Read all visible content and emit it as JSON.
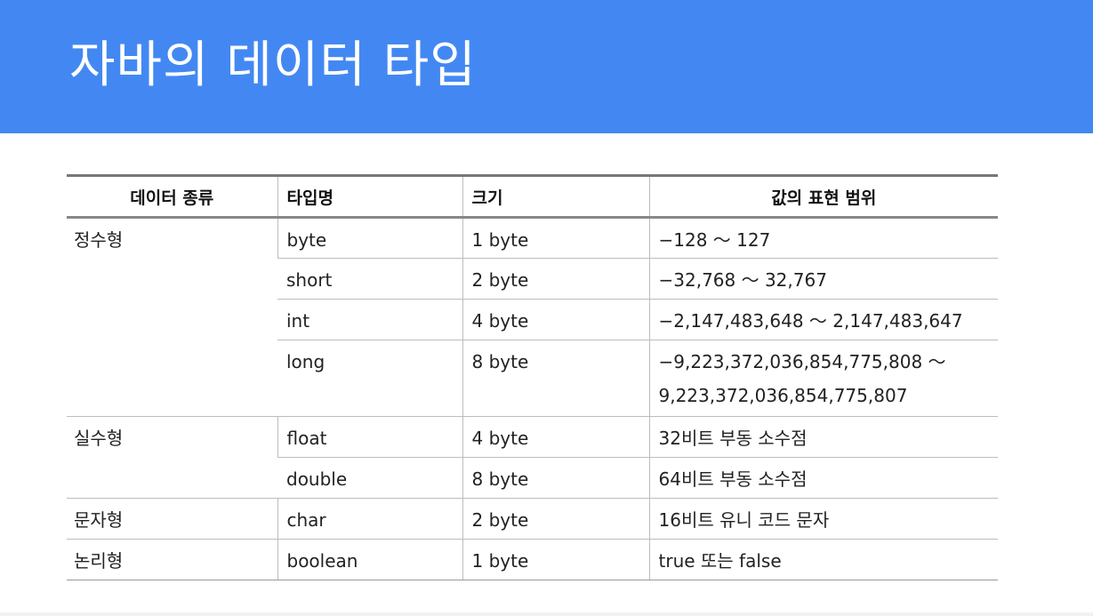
{
  "title": "자바의 데이터 타입",
  "table": {
    "headers": [
      "데이터 종류",
      "타입명",
      "크기",
      "값의 표현 범위"
    ],
    "groups": [
      {
        "category": "정수형",
        "rows": [
          {
            "type": "byte",
            "size": "1 byte",
            "range": "−128 ～ 127"
          },
          {
            "type": "short",
            "size": "2 byte",
            "range": "−32,768 ～ 32,767"
          },
          {
            "type": "int",
            "size": "4 byte",
            "range": "−2,147,483,648 ～ 2,147,483,647"
          },
          {
            "type": "long",
            "size": "8 byte",
            "range": "−9,223,372,036,854,775,808 ～",
            "range2": "9,223,372,036,854,775,807"
          }
        ]
      },
      {
        "category": "실수형",
        "rows": [
          {
            "type": "float",
            "size": "4 byte",
            "range": "32비트 부동 소수점"
          },
          {
            "type": "double",
            "size": "8 byte",
            "range": "64비트 부동 소수점"
          }
        ]
      },
      {
        "category": "문자형",
        "rows": [
          {
            "type": "char",
            "size": "2 byte",
            "range": "16비트 유니 코드 문자"
          }
        ]
      },
      {
        "category": "논리형",
        "rows": [
          {
            "type": "boolean",
            "size": "1 byte",
            "range": "true 또는 false"
          }
        ]
      }
    ]
  }
}
